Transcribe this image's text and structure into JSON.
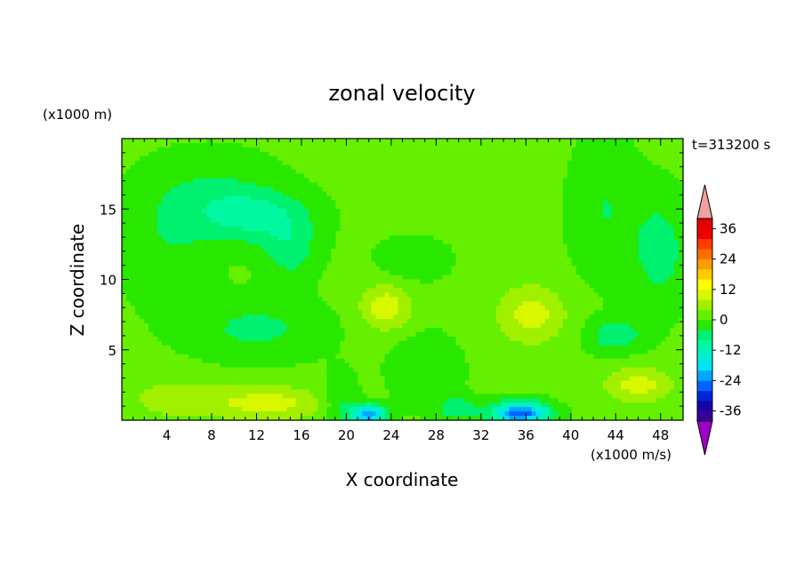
{
  "chart_data": {
    "type": "heatmap",
    "title": "zonal velocity",
    "xlabel": "X coordinate",
    "ylabel": "Z coordinate",
    "x_units": "(x1000 m/s)",
    "y_units": "(x1000 m)",
    "time_label": "t=313200 s",
    "xlim": [
      0,
      50
    ],
    "ylim": [
      0,
      20
    ],
    "x_ticks": [
      4,
      8,
      12,
      16,
      20,
      24,
      28,
      32,
      36,
      40,
      44,
      48
    ],
    "y_ticks": [
      5,
      10,
      15
    ],
    "grid": false,
    "colorbar": {
      "location": "right",
      "levels": [
        -40,
        -36,
        -32,
        -28,
        -24,
        -20,
        -16,
        -12,
        -8,
        -4,
        0,
        4,
        8,
        12,
        16,
        20,
        24,
        28,
        32,
        36,
        40
      ],
      "tick_labels": [
        "36",
        "24",
        "12",
        "0",
        "-12",
        "-24",
        "-36"
      ],
      "tick_values": [
        36,
        24,
        12,
        0,
        -12,
        -24,
        -36
      ],
      "colors": [
        "#380098",
        "#1a00a8",
        "#0024d8",
        "#0064ff",
        "#00a8ff",
        "#00e4f0",
        "#00f0d0",
        "#00f8a0",
        "#00f070",
        "#28e800",
        "#64f000",
        "#a0f000",
        "#d8f800",
        "#ffff00",
        "#ffcc00",
        "#ff9c00",
        "#ff6c00",
        "#ff3c00",
        "#f00000",
        "#e00000"
      ],
      "over_color": "#f0a0a0",
      "under_color": "#a000c8"
    },
    "blobs": [
      {
        "x": 12,
        "y": 14.5,
        "sx": 5,
        "sy": 1.8,
        "v": -9
      },
      {
        "x": 15,
        "y": 12,
        "sx": 2.5,
        "sy": 2,
        "v": -7
      },
      {
        "x": 8,
        "y": 16,
        "sx": 6,
        "sy": 3,
        "v": -5
      },
      {
        "x": 4,
        "y": 12,
        "sx": 4,
        "sy": 4,
        "v": -4
      },
      {
        "x": 12,
        "y": 6.5,
        "sx": 6,
        "sy": 2.2,
        "v": -6
      },
      {
        "x": 44,
        "y": 6,
        "sx": 2.5,
        "sy": 1.2,
        "v": -8
      },
      {
        "x": 48,
        "y": 12,
        "sx": 2.5,
        "sy": 4,
        "v": -7
      },
      {
        "x": 43,
        "y": 15,
        "sx": 3,
        "sy": 5,
        "v": -5
      },
      {
        "x": 26,
        "y": 11.5,
        "sx": 3,
        "sy": 1.5,
        "v": -5
      },
      {
        "x": 27,
        "y": 3.5,
        "sx": 3,
        "sy": 2.5,
        "v": -5
      },
      {
        "x": 28,
        "y": 17,
        "sx": 6,
        "sy": 3,
        "v": 2
      },
      {
        "x": 23.5,
        "y": 8,
        "sx": 2.2,
        "sy": 1.6,
        "v": 10
      },
      {
        "x": 36.5,
        "y": 7.5,
        "sx": 3,
        "sy": 2,
        "v": 9
      },
      {
        "x": 13,
        "y": 1.2,
        "sx": 5,
        "sy": 1.2,
        "v": 9
      },
      {
        "x": 5,
        "y": 1.5,
        "sx": 4,
        "sy": 1.3,
        "v": 6
      },
      {
        "x": 46,
        "y": 2.5,
        "sx": 3,
        "sy": 1.2,
        "v": 9
      },
      {
        "x": 22,
        "y": 0.4,
        "sx": 1.5,
        "sy": 0.7,
        "v": -24
      },
      {
        "x": 35.5,
        "y": 0.5,
        "sx": 2.5,
        "sy": 0.8,
        "v": -28
      },
      {
        "x": 30,
        "y": 0.8,
        "sx": 1.8,
        "sy": 0.8,
        "v": -8
      },
      {
        "x": 19.5,
        "y": 1.2,
        "sx": 1.5,
        "sy": 2,
        "v": -6
      }
    ],
    "base_value": 1
  }
}
